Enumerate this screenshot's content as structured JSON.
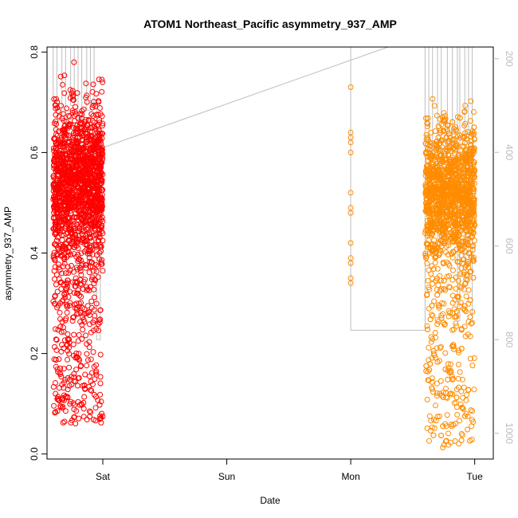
{
  "chart_data": {
    "type": "scatter",
    "title": "ATOM1 Northeast_Pacific asymmetry_937_AMP",
    "xlabel": "Date",
    "ylabel": "asymmetry_937_AMP",
    "x_ticks": [
      "Sat",
      "Sun",
      "Mon",
      "Tue"
    ],
    "x_range_days": [
      -0.45,
      3.15
    ],
    "ylim": [
      -0.01,
      0.81
    ],
    "y_ticks": [
      0.0,
      0.2,
      0.4,
      0.6,
      0.8
    ],
    "y_tick_labels": [
      "0.0",
      "0.2",
      "0.4",
      "0.6",
      "0.8"
    ],
    "secondary_axis": {
      "position": "right",
      "color": "#bbbbbb",
      "range": [
        1055,
        175
      ],
      "ticks": [
        200,
        400,
        600,
        800,
        1000
      ],
      "tick_labels": [
        "200",
        "400",
        "600",
        "800",
        "1000"
      ]
    },
    "grid": false,
    "legend": "none",
    "series": [
      {
        "color": "#ff0000",
        "x_range": [
          -0.4,
          0.0
        ],
        "y_dense_range": [
          0.35,
          0.72
        ],
        "y_min": 0.06,
        "y_max": 0.78,
        "count": 1800
      },
      {
        "color": "#ff8c00",
        "x_values": [
          0.0,
          0.0,
          0.0,
          0.0,
          0.0,
          0.0,
          0.0,
          0.0,
          0.0,
          0.0,
          0.0,
          0.0,
          0.0
        ],
        "y_values": [
          0.73,
          0.64,
          0.63,
          0.62,
          0.6,
          0.52,
          0.49,
          0.48,
          0.42,
          0.39,
          0.38,
          0.35,
          0.34
        ],
        "x_offset_day": 2
      },
      {
        "color": "#ff8c00",
        "x_range": [
          2.6,
          3.0
        ],
        "y_dense_range": [
          0.36,
          0.68
        ],
        "y_min": 0.01,
        "y_max": 0.73,
        "count": 1700
      }
    ],
    "depth_trace": {
      "color": "#bdbdbd",
      "points": [
        [
          -0.4,
          175
        ],
        [
          -0.4,
          290
        ],
        [
          -0.37,
          290
        ],
        [
          -0.37,
          175
        ],
        [
          -0.33,
          175
        ],
        [
          -0.33,
          320
        ],
        [
          -0.3,
          320
        ],
        [
          -0.3,
          175
        ],
        [
          -0.26,
          175
        ],
        [
          -0.26,
          300
        ],
        [
          -0.23,
          300
        ],
        [
          -0.23,
          175
        ],
        [
          -0.2,
          175
        ],
        [
          -0.2,
          330
        ],
        [
          -0.17,
          330
        ],
        [
          -0.17,
          175
        ],
        [
          -0.13,
          175
        ],
        [
          -0.13,
          310
        ],
        [
          -0.1,
          310
        ],
        [
          -0.1,
          175
        ],
        [
          -0.07,
          175
        ],
        [
          -0.07,
          300
        ],
        [
          -0.05,
          300
        ],
        [
          -0.05,
          800
        ],
        [
          -0.02,
          800
        ],
        [
          -0.02,
          400
        ],
        [
          0.0,
          390
        ],
        [
          2.3,
          175
        ],
        [
          2.0,
          175
        ],
        [
          2.0,
          780
        ],
        [
          2.6,
          780
        ],
        [
          2.6,
          175
        ],
        [
          2.63,
          175
        ],
        [
          2.63,
          400
        ],
        [
          2.66,
          400
        ],
        [
          2.66,
          175
        ],
        [
          2.7,
          175
        ],
        [
          2.7,
          600
        ],
        [
          2.73,
          600
        ],
        [
          2.73,
          175
        ],
        [
          2.78,
          175
        ],
        [
          2.78,
          420
        ],
        [
          2.82,
          420
        ],
        [
          2.82,
          175
        ],
        [
          2.86,
          175
        ],
        [
          2.86,
          760
        ],
        [
          2.88,
          760
        ],
        [
          2.88,
          175
        ],
        [
          2.92,
          175
        ],
        [
          2.92,
          640
        ],
        [
          2.95,
          640
        ],
        [
          2.95,
          175
        ],
        [
          2.98,
          175
        ],
        [
          2.98,
          760
        ],
        [
          3.0,
          760
        ]
      ]
    }
  }
}
